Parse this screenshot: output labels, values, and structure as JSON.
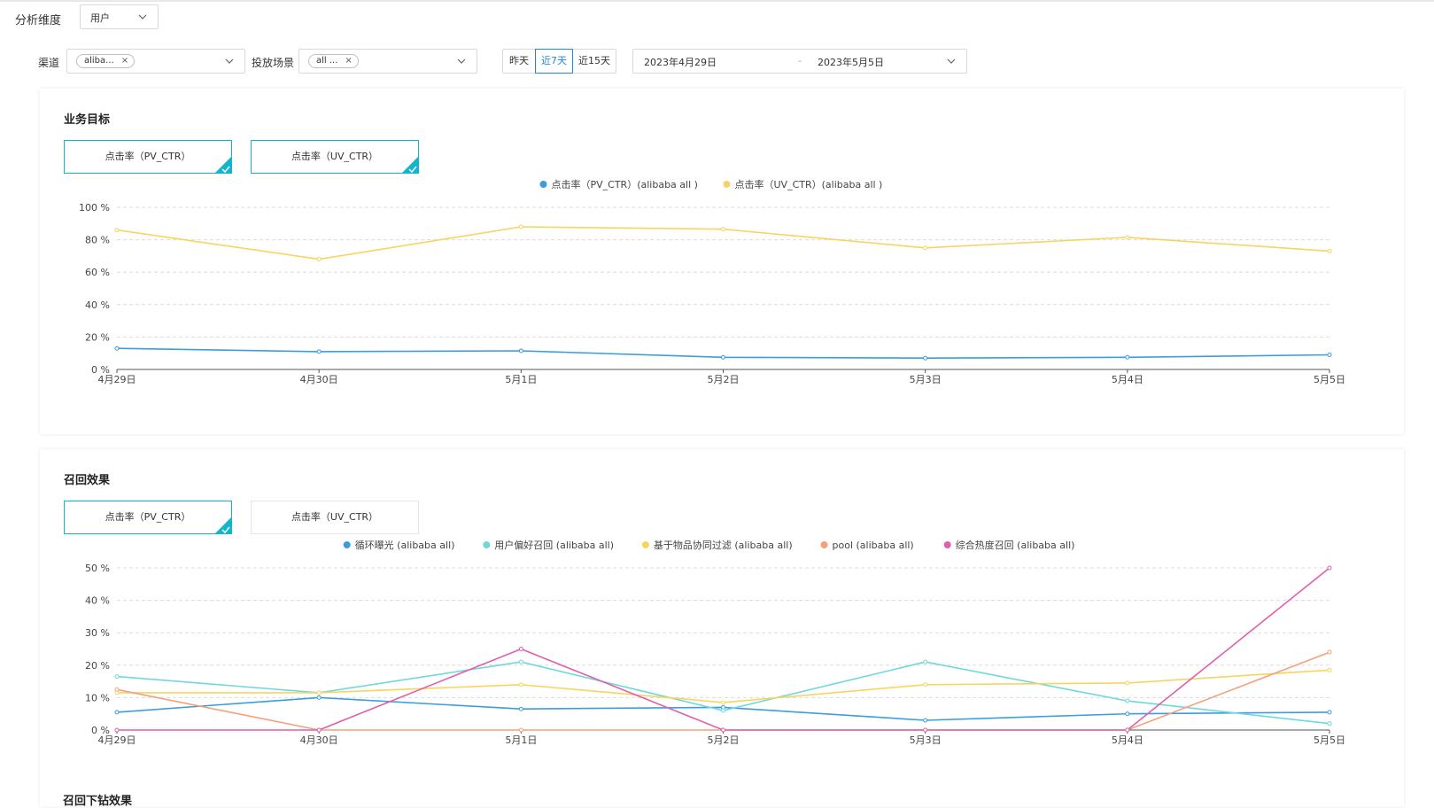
{
  "filters": {
    "dimension_label": "分析维度",
    "dimension_value": "用户",
    "channel_label": "渠道",
    "channel_tag": "aliba...",
    "scene_label": "投放场景",
    "scene_tag": "all ...",
    "tag_close": "×",
    "quick_ranges": [
      {
        "label": "昨天",
        "active": false
      },
      {
        "label": "近7天",
        "active": true
      },
      {
        "label": "近15天",
        "active": false
      }
    ],
    "date_start": "2023年4月29日",
    "date_sep": "-",
    "date_end": "2023年5月5日"
  },
  "section1": {
    "title": "业务目标",
    "cards": [
      {
        "label": "点击率（PV_CTR）",
        "selected": true
      },
      {
        "label": "点击率（UV_CTR）",
        "selected": true
      }
    ]
  },
  "section2": {
    "title": "召回效果",
    "cards": [
      {
        "label": "点击率（PV_CTR）",
        "selected": true
      },
      {
        "label": "点击率（UV_CTR）",
        "selected": false
      }
    ]
  },
  "section3": {
    "title": "召回下钻效果"
  },
  "colors": {
    "accent": "#1e88e5",
    "card_selected": "#13b5cc"
  },
  "chart_data": [
    {
      "type": "line",
      "categories": [
        "4月29日",
        "4月30日",
        "5月1日",
        "5月2日",
        "5月3日",
        "5月4日",
        "5月5日"
      ],
      "ylim": [
        0,
        100
      ],
      "yticks": [
        0,
        20,
        40,
        60,
        80,
        100
      ],
      "ytick_labels": [
        "0 %",
        "20 %",
        "40 %",
        "60 %",
        "80 %",
        "100 %"
      ],
      "legend_position": "top-center",
      "grid": true,
      "series": [
        {
          "name": "点击率（PV_CTR）(alibaba all )",
          "color": "#3b9ddd",
          "values": [
            13,
            11,
            11.5,
            7.5,
            7,
            7.5,
            9
          ]
        },
        {
          "name": "点击率（UV_CTR）(alibaba all )",
          "color": "#f7d460",
          "values": [
            86,
            68,
            88,
            86.5,
            75,
            81.5,
            73
          ]
        }
      ]
    },
    {
      "type": "line",
      "categories": [
        "4月29日",
        "4月30日",
        "5月1日",
        "5月2日",
        "5月3日",
        "5月4日",
        "5月5日"
      ],
      "ylim": [
        0,
        50
      ],
      "yticks": [
        0,
        10,
        20,
        30,
        40,
        50
      ],
      "ytick_labels": [
        "0 %",
        "10 %",
        "20 %",
        "30 %",
        "40 %",
        "50 %"
      ],
      "legend_position": "top-center",
      "grid": true,
      "series": [
        {
          "name": "循环曝光 (alibaba all)",
          "color": "#3b9ddd",
          "values": [
            5.5,
            10,
            6.5,
            7,
            3,
            5,
            5.5
          ]
        },
        {
          "name": "用户偏好召回 (alibaba all)",
          "color": "#6fd8dc",
          "values": [
            16.5,
            11.5,
            21,
            6,
            21,
            9,
            2
          ]
        },
        {
          "name": "基于物品协同过滤 (alibaba all)",
          "color": "#f7d460",
          "values": [
            11.5,
            11.5,
            14,
            8.5,
            14,
            14.5,
            18.5
          ]
        },
        {
          "name": "pool (alibaba all)",
          "color": "#f4a07a",
          "values": [
            12.5,
            0,
            0,
            0,
            0,
            0,
            24
          ]
        },
        {
          "name": "综合热度召回 (alibaba all)",
          "color": "#e05faa",
          "values": [
            0,
            0,
            25,
            0,
            0,
            0,
            50
          ]
        }
      ]
    }
  ]
}
